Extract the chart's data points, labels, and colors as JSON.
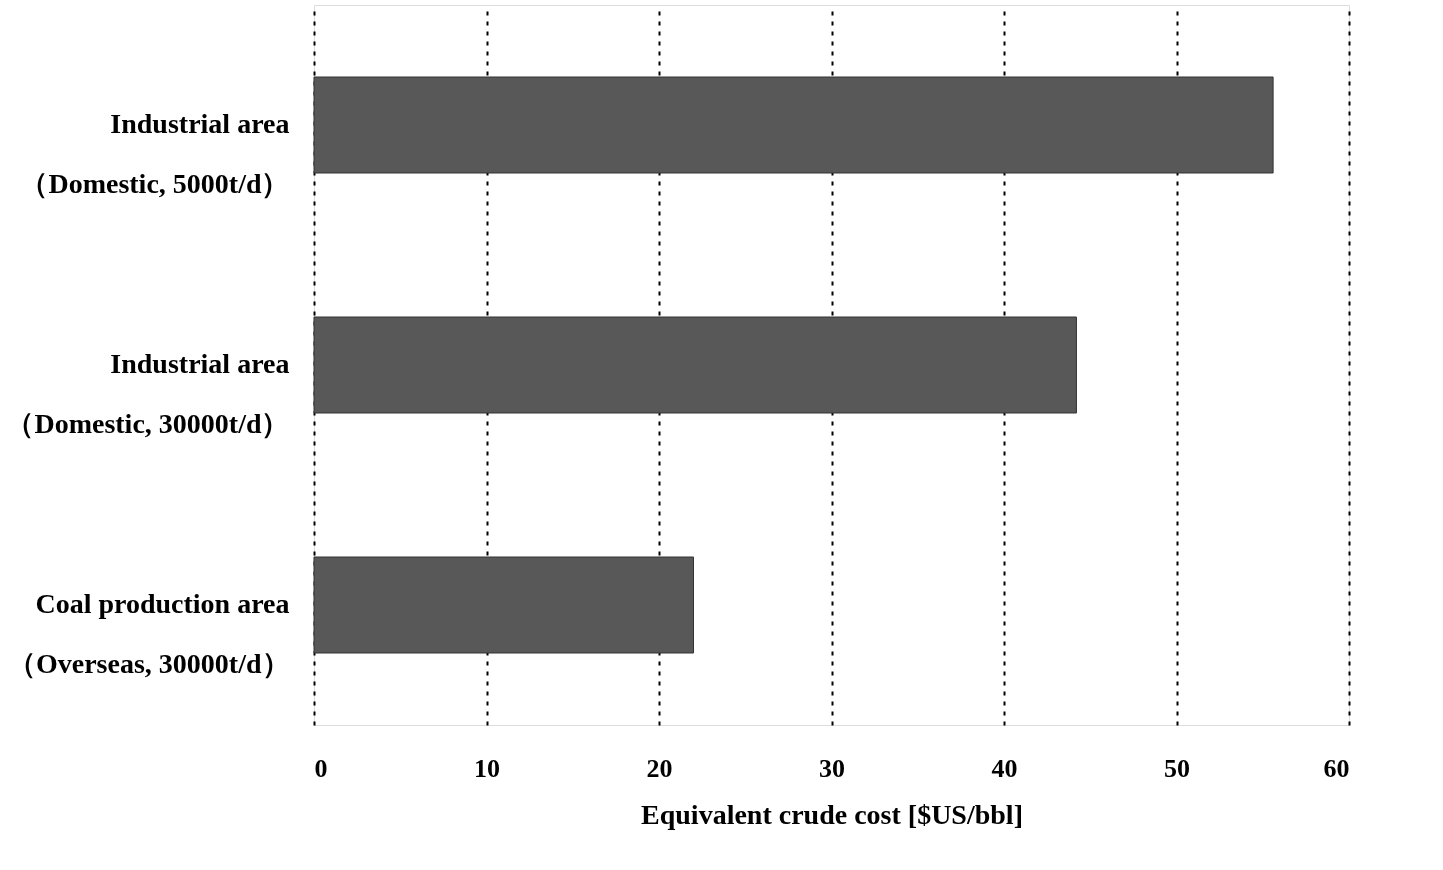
{
  "chart_data": {
    "type": "bar",
    "orientation": "horizontal",
    "xlabel": "Equivalent crude cost [$US/bbl]",
    "categories": [
      "Industrial area\n（Domestic, 5000t/d）",
      "Industrial area\n（Domestic, 30000t/d）",
      "Coal production area\n（Overseas, 30000t/d）"
    ],
    "values": [
      55.6,
      44.2,
      22.0
    ],
    "color": "#585858",
    "xlim": [
      0,
      60
    ],
    "xticks": [
      0,
      10,
      20,
      30,
      40,
      50,
      60
    ],
    "grid": "x"
  }
}
